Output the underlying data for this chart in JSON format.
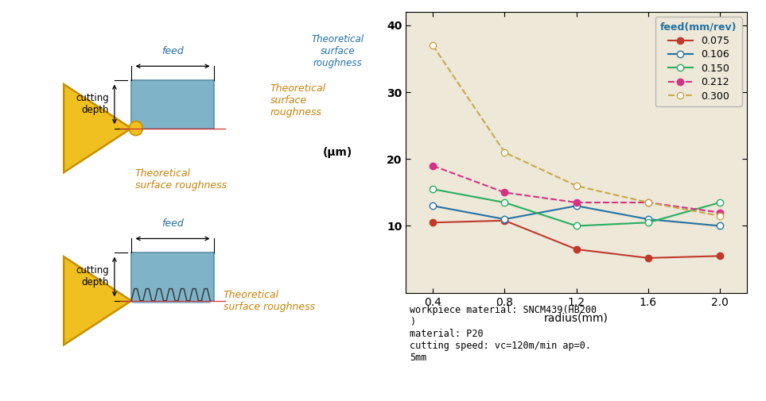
{
  "x": [
    0.4,
    0.8,
    1.2,
    1.6,
    2.0
  ],
  "series": {
    "0.075": {
      "y": [
        10.5,
        10.8,
        6.5,
        5.2,
        5.5
      ],
      "color": "#c0392b",
      "linestyle": "-",
      "marker": "o",
      "markerfacecolor": "#c0392b",
      "markeredgecolor": "#c0392b",
      "linewidth": 1.5,
      "markersize": 6
    },
    "0.106": {
      "y": [
        13.0,
        11.0,
        13.0,
        11.0,
        10.0
      ],
      "color": "#2471a3",
      "linestyle": "-",
      "marker": "o",
      "markerfacecolor": "white",
      "markeredgecolor": "#2471a3",
      "linewidth": 1.5,
      "markersize": 6
    },
    "0.150": {
      "y": [
        15.5,
        13.5,
        10.0,
        10.5,
        13.5
      ],
      "color": "#27ae60",
      "linestyle": "-",
      "marker": "o",
      "markerfacecolor": "white",
      "markeredgecolor": "#27ae60",
      "linewidth": 1.5,
      "markersize": 6
    },
    "0.212": {
      "y": [
        19.0,
        15.0,
        13.5,
        13.5,
        12.0
      ],
      "color": "#d63184",
      "linestyle": "--",
      "marker": "o",
      "markerfacecolor": "#d63184",
      "markeredgecolor": "#d63184",
      "linewidth": 1.5,
      "markersize": 6
    },
    "0.300": {
      "y": [
        37.0,
        21.0,
        16.0,
        13.5,
        11.5
      ],
      "color": "#c8a84b",
      "linestyle": "--",
      "marker": "o",
      "markerfacecolor": "white",
      "markeredgecolor": "#c8a84b",
      "linewidth": 1.5,
      "markersize": 6
    }
  },
  "xlim": [
    0.25,
    2.15
  ],
  "ylim": [
    0,
    42
  ],
  "yticks": [
    10,
    20,
    30,
    40
  ],
  "xticks": [
    0.4,
    0.8,
    1.2,
    1.6,
    2.0
  ],
  "xlabel": "radius(mm)",
  "ylabel_top": "Theoretical\nsurface\nroughness",
  "ylabel_unit": "(μm)",
  "legend_title": "feed(mm/rev)",
  "bg_color": "#ede8d8",
  "annotation_text": "workpiece material: SNCM439(HB200\n)\nmaterial: P20\ncutting speed: vc=120m/min ap=0.\n5mm",
  "tool_color": "#f0c020",
  "tool_edge_color": "#c89000",
  "workpiece_color": "#7fb3c8",
  "workpiece_edge_color": "#5a8fa3",
  "feed_label_color": "#2471a3",
  "roughness_label_color": "#c8820a",
  "red_line_color": "#cc3333"
}
